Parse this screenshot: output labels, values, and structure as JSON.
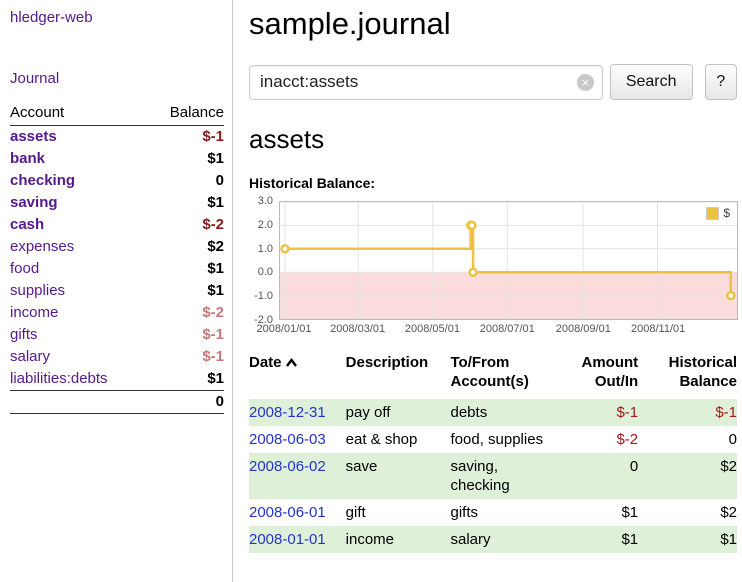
{
  "colors": {
    "link_purple": "#551a8b",
    "link_blue": "#2433cc",
    "neg_strong": "#8b1a1a",
    "neg_light": "#c47a7a",
    "neg_table": "#a81817",
    "row_green": "#dff0d8",
    "chart_line": "#edc240",
    "chart_fill_below_zero": "#fbdcdc",
    "axis_label": "#545454"
  },
  "sidebar": {
    "app_title": "hledger-web",
    "journal_link": "Journal",
    "accounts": {
      "header_account": "Account",
      "header_balance": "Balance",
      "rows": [
        {
          "name": "assets",
          "balance": "$-1"
        },
        {
          "name": "bank",
          "balance": "$1"
        },
        {
          "name": "checking",
          "balance": "0"
        },
        {
          "name": "saving",
          "balance": "$1"
        },
        {
          "name": "cash",
          "balance": "$-2"
        },
        {
          "name": "expenses",
          "balance": "$2"
        },
        {
          "name": "food",
          "balance": "$1"
        },
        {
          "name": "supplies",
          "balance": "$1"
        },
        {
          "name": "income",
          "balance": "$-2"
        },
        {
          "name": "gifts",
          "balance": "$-1"
        },
        {
          "name": "salary",
          "balance": "$-1"
        },
        {
          "name": "liabilities:debts",
          "balance": "$1"
        }
      ],
      "total": "0"
    }
  },
  "main": {
    "title": "sample.journal",
    "search": {
      "value": "inacct:assets",
      "clear_icon": "×",
      "search_button": "Search",
      "help_button": "?"
    },
    "heading": "assets",
    "chart_label": "Historical Balance:"
  },
  "register": {
    "headers": {
      "date": "Date",
      "description": "Description",
      "accounts": "To/From Account(s)",
      "amount": "Amount Out/In",
      "balance": "Historical Balance"
    },
    "rows": [
      {
        "date": "2008-12-31",
        "description": "pay off",
        "accounts": "debts",
        "amount": "$-1",
        "balance": "$-1"
      },
      {
        "date": "2008-06-03",
        "description": "eat & shop",
        "accounts": "food, supplies",
        "amount": "$-2",
        "balance": "0"
      },
      {
        "date": "2008-06-02",
        "description": "save",
        "accounts": "saving, checking",
        "amount": "0",
        "balance": "$2"
      },
      {
        "date": "2008-06-01",
        "description": "gift",
        "accounts": "gifts",
        "amount": "$1",
        "balance": "$2"
      },
      {
        "date": "2008-01-01",
        "description": "income",
        "accounts": "salary",
        "amount": "$1",
        "balance": "$1"
      }
    ]
  },
  "chart_data": {
    "type": "line",
    "step": true,
    "title": "Historical Balance:",
    "legend": [
      {
        "name": "$",
        "color": "#edc240"
      }
    ],
    "x_range": [
      "2008-01-01",
      "2009-01-01"
    ],
    "ylim": [
      -2,
      3
    ],
    "grid": true,
    "legend_position": "top-right",
    "yticks": [
      {
        "v": 3,
        "label": "3.0"
      },
      {
        "v": 2,
        "label": "2.0"
      },
      {
        "v": 1,
        "label": "1.0"
      },
      {
        "v": 0,
        "label": "0.0"
      },
      {
        "v": -1,
        "label": "-1.0"
      },
      {
        "v": -2,
        "label": "-2.0"
      }
    ],
    "xticks": [
      {
        "date": "2008-01-01",
        "label": "2008/01/01"
      },
      {
        "date": "2008-03-01",
        "label": "2008/03/01"
      },
      {
        "date": "2008-05-01",
        "label": "2008/05/01"
      },
      {
        "date": "2008-07-01",
        "label": "2008/07/01"
      },
      {
        "date": "2008-09-01",
        "label": "2008/09/01"
      },
      {
        "date": "2008-11-01",
        "label": "2008/11/01"
      }
    ],
    "series": [
      {
        "name": "$",
        "points": [
          [
            "2008-01-01",
            1
          ],
          [
            "2008-06-01",
            2
          ],
          [
            "2008-06-02",
            2
          ],
          [
            "2008-06-03",
            0
          ],
          [
            "2008-12-31",
            -1
          ]
        ]
      }
    ],
    "marking_below_zero": true
  }
}
